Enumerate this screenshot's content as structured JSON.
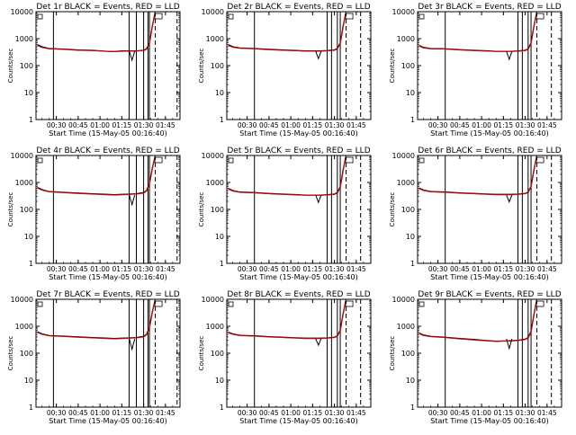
{
  "figure": {
    "xlabel": "Start Time (15-May-05 00:16:40)",
    "ylabel": "Counts/sec",
    "x_ticks": [
      "00:30",
      "00:45",
      "01:00",
      "01:15",
      "01:30",
      "01:45"
    ],
    "y_ticks": [
      "1",
      "10",
      "100",
      "1000",
      "10000"
    ],
    "colors": {
      "events": "#000000",
      "lld": "#d40000",
      "axes": "#000000",
      "background": "#ffffff"
    }
  },
  "chart_data": [
    {
      "type": "line",
      "title": "Det 1r BLACK = Events, RED = LLD",
      "xlabel": "Start Time (15-May-05 00:16:40)",
      "ylabel": "Counts/sec",
      "y_scale": "log",
      "xlim": [
        "00:16",
        "01:55"
      ],
      "ylim": [
        1,
        10000
      ],
      "x": [
        "00:17",
        "00:20",
        "00:25",
        "00:35",
        "00:45",
        "00:55",
        "01:05",
        "01:10",
        "01:15",
        "01:20",
        "01:25",
        "01:30",
        "01:32",
        "01:34",
        "01:36",
        "01:38"
      ],
      "series": [
        {
          "name": "Events",
          "color": "#000000",
          "values": [
            600,
            500,
            430,
            410,
            380,
            370,
            340,
            330,
            350,
            350,
            350,
            370,
            420,
            700,
            3000,
            10000
          ]
        },
        {
          "name": "LLD",
          "color": "#d40000",
          "values": [
            560,
            470,
            420,
            400,
            370,
            360,
            340,
            330,
            340,
            345,
            350,
            360,
            400,
            650,
            2800,
            10000
          ]
        }
      ],
      "vertical_lines_solid": [
        "00:28",
        "01:20",
        "01:25",
        "01:30",
        "01:33",
        "01:34"
      ],
      "vertical_lines_dashed": [
        "01:38",
        "01:53"
      ],
      "dip": {
        "x": "01:22",
        "y": 160
      }
    },
    {
      "type": "line",
      "title": "Det 2r BLACK = Events, RED = LLD",
      "xlabel": "Start Time (15-May-05 00:16:40)",
      "ylabel": "Counts/sec",
      "y_scale": "log",
      "xlim": [
        "00:16",
        "01:55"
      ],
      "ylim": [
        1,
        10000
      ],
      "x": [
        "00:17",
        "00:20",
        "00:25",
        "00:35",
        "00:45",
        "00:55",
        "01:05",
        "01:10",
        "01:15",
        "01:20",
        "01:25",
        "01:30",
        "01:32",
        "01:34",
        "01:36",
        "01:38"
      ],
      "series": [
        {
          "name": "Events",
          "color": "#000000",
          "values": [
            600,
            500,
            450,
            430,
            400,
            380,
            360,
            350,
            350,
            350,
            360,
            380,
            430,
            700,
            3000,
            10000
          ]
        },
        {
          "name": "LLD",
          "color": "#d40000",
          "values": [
            560,
            480,
            440,
            420,
            390,
            370,
            355,
            345,
            345,
            345,
            355,
            370,
            410,
            650,
            2800,
            10000
          ]
        }
      ],
      "vertical_lines_solid": [
        "00:35",
        "01:25",
        "01:28",
        "01:32",
        "01:34"
      ],
      "vertical_lines_dashed": [
        "01:38",
        "01:48"
      ],
      "dip": {
        "x": "01:19",
        "y": 180
      }
    },
    {
      "type": "line",
      "title": "Det 3r BLACK = Events, RED = LLD",
      "xlabel": "Start Time (15-May-05 00:16:40)",
      "ylabel": "Counts/sec",
      "y_scale": "log",
      "xlim": [
        "00:16",
        "01:55"
      ],
      "ylim": [
        1,
        10000
      ],
      "x": [
        "00:17",
        "00:20",
        "00:25",
        "00:35",
        "00:45",
        "00:55",
        "01:05",
        "01:10",
        "01:15",
        "01:20",
        "01:25",
        "01:30",
        "01:32",
        "01:34",
        "01:36",
        "01:38"
      ],
      "series": [
        {
          "name": "Events",
          "color": "#000000",
          "values": [
            560,
            470,
            430,
            420,
            390,
            370,
            350,
            340,
            340,
            340,
            350,
            370,
            420,
            700,
            3000,
            10000
          ]
        },
        {
          "name": "LLD",
          "color": "#d40000",
          "values": [
            530,
            450,
            420,
            410,
            380,
            360,
            345,
            335,
            335,
            335,
            345,
            360,
            400,
            650,
            2800,
            10000
          ]
        }
      ],
      "vertical_lines_solid": [
        "00:35",
        "01:25",
        "01:28",
        "01:32",
        "01:34"
      ],
      "vertical_lines_dashed": [
        "01:38",
        "01:48"
      ],
      "dip": {
        "x": "01:19",
        "y": 170
      }
    },
    {
      "type": "line",
      "title": "Det 4r BLACK = Events, RED = LLD",
      "xlabel": "Start Time (15-May-05 00:16:40)",
      "ylabel": "Counts/sec",
      "y_scale": "log",
      "xlim": [
        "00:16",
        "01:55"
      ],
      "ylim": [
        1,
        10000
      ],
      "x": [
        "00:17",
        "00:20",
        "00:25",
        "00:35",
        "00:45",
        "00:55",
        "01:05",
        "01:10",
        "01:15",
        "01:20",
        "01:25",
        "01:30",
        "01:32",
        "01:34",
        "01:36",
        "01:38"
      ],
      "series": [
        {
          "name": "Events",
          "color": "#000000",
          "values": [
            650,
            540,
            460,
            430,
            400,
            380,
            360,
            350,
            360,
            370,
            380,
            420,
            500,
            900,
            3500,
            10000
          ]
        },
        {
          "name": "LLD",
          "color": "#d40000",
          "values": [
            620,
            520,
            450,
            420,
            390,
            370,
            350,
            340,
            350,
            360,
            370,
            400,
            480,
            850,
            3200,
            10000
          ]
        }
      ],
      "vertical_lines_solid": [
        "00:28",
        "01:20",
        "01:25",
        "01:30",
        "01:33",
        "01:34"
      ],
      "vertical_lines_dashed": [
        "01:38",
        "01:53"
      ],
      "dip": {
        "x": "01:22",
        "y": 150
      }
    },
    {
      "type": "line",
      "title": "Det 5r BLACK = Events, RED = LLD",
      "xlabel": "Start Time (15-May-05 00:16:40)",
      "ylabel": "Counts/sec",
      "y_scale": "log",
      "xlim": [
        "00:16",
        "01:55"
      ],
      "ylim": [
        1,
        10000
      ],
      "x": [
        "00:17",
        "00:20",
        "00:25",
        "00:35",
        "00:45",
        "00:55",
        "01:05",
        "01:10",
        "01:15",
        "01:20",
        "01:25",
        "01:30",
        "01:32",
        "01:34",
        "01:36",
        "01:38"
      ],
      "series": [
        {
          "name": "Events",
          "color": "#000000",
          "values": [
            600,
            500,
            440,
            420,
            390,
            370,
            350,
            340,
            340,
            340,
            350,
            370,
            420,
            700,
            3000,
            10000
          ]
        },
        {
          "name": "LLD",
          "color": "#d40000",
          "values": [
            570,
            480,
            430,
            410,
            380,
            360,
            345,
            335,
            335,
            335,
            345,
            360,
            400,
            650,
            2800,
            10000
          ]
        }
      ],
      "vertical_lines_solid": [
        "00:35",
        "01:25",
        "01:28",
        "01:32",
        "01:34"
      ],
      "vertical_lines_dashed": [
        "01:38",
        "01:48"
      ],
      "dip": {
        "x": "01:19",
        "y": 180
      }
    },
    {
      "type": "line",
      "title": "Det 6r BLACK = Events, RED = LLD",
      "xlabel": "Start Time (15-May-05 00:16:40)",
      "ylabel": "Counts/sec",
      "y_scale": "log",
      "xlim": [
        "00:16",
        "01:55"
      ],
      "ylim": [
        1,
        10000
      ],
      "x": [
        "00:17",
        "00:20",
        "00:25",
        "00:35",
        "00:45",
        "00:55",
        "01:05",
        "01:10",
        "01:15",
        "01:20",
        "01:25",
        "01:30",
        "01:32",
        "01:34",
        "01:36",
        "01:38"
      ],
      "series": [
        {
          "name": "Events",
          "color": "#000000",
          "values": [
            620,
            520,
            460,
            440,
            410,
            390,
            370,
            360,
            360,
            360,
            370,
            390,
            440,
            720,
            3000,
            10000
          ]
        },
        {
          "name": "LLD",
          "color": "#d40000",
          "values": [
            590,
            500,
            450,
            430,
            400,
            380,
            360,
            350,
            350,
            350,
            360,
            380,
            420,
            680,
            2800,
            10000
          ]
        }
      ],
      "vertical_lines_solid": [
        "00:35",
        "01:25",
        "01:28",
        "01:32",
        "01:34"
      ],
      "vertical_lines_dashed": [
        "01:38",
        "01:48"
      ],
      "dip": {
        "x": "01:19",
        "y": 190
      }
    },
    {
      "type": "line",
      "title": "Det 7r BLACK = Events, RED = LLD",
      "xlabel": "Start Time (15-May-05 00:16:40)",
      "ylabel": "Counts/sec",
      "y_scale": "log",
      "xlim": [
        "00:16",
        "01:55"
      ],
      "ylim": [
        1,
        10000
      ],
      "x": [
        "00:17",
        "00:20",
        "00:25",
        "00:35",
        "00:45",
        "00:55",
        "01:05",
        "01:10",
        "01:15",
        "01:20",
        "01:25",
        "01:30",
        "01:32",
        "01:34",
        "01:36",
        "01:38"
      ],
      "series": [
        {
          "name": "Events",
          "color": "#000000",
          "values": [
            620,
            520,
            450,
            430,
            400,
            380,
            360,
            350,
            360,
            370,
            380,
            420,
            500,
            900,
            3500,
            10000
          ]
        },
        {
          "name": "LLD",
          "color": "#d40000",
          "values": [
            590,
            500,
            440,
            420,
            390,
            370,
            350,
            340,
            350,
            360,
            370,
            400,
            480,
            850,
            3200,
            10000
          ]
        }
      ],
      "vertical_lines_solid": [
        "00:28",
        "01:20",
        "01:25",
        "01:30",
        "01:33",
        "01:34"
      ],
      "vertical_lines_dashed": [
        "01:38",
        "01:53"
      ],
      "dip": {
        "x": "01:22",
        "y": 140
      }
    },
    {
      "type": "line",
      "title": "Det 8r BLACK = Events, RED = LLD",
      "xlabel": "Start Time (15-May-05 00:16:40)",
      "ylabel": "Counts/sec",
      "y_scale": "log",
      "xlim": [
        "00:16",
        "01:55"
      ],
      "ylim": [
        1,
        10000
      ],
      "x": [
        "00:17",
        "00:20",
        "00:25",
        "00:35",
        "00:45",
        "00:55",
        "01:05",
        "01:10",
        "01:15",
        "01:20",
        "01:25",
        "01:30",
        "01:32",
        "01:34",
        "01:36",
        "01:38"
      ],
      "series": [
        {
          "name": "Events",
          "color": "#000000",
          "values": [
            600,
            520,
            460,
            440,
            410,
            390,
            370,
            360,
            360,
            360,
            370,
            390,
            440,
            720,
            3000,
            10000
          ]
        },
        {
          "name": "LLD",
          "color": "#d40000",
          "values": [
            570,
            500,
            450,
            430,
            400,
            380,
            360,
            350,
            350,
            350,
            360,
            380,
            420,
            680,
            2800,
            10000
          ]
        }
      ],
      "vertical_lines_solid": [
        "00:35",
        "01:25",
        "01:28",
        "01:32",
        "01:34"
      ],
      "vertical_lines_dashed": [
        "01:38",
        "01:48"
      ],
      "dip": {
        "x": "01:19",
        "y": 200
      }
    },
    {
      "type": "line",
      "title": "Det 9r BLACK = Events, RED = LLD",
      "xlabel": "Start Time (15-May-05 00:16:40)",
      "ylabel": "Counts/sec",
      "y_scale": "log",
      "xlim": [
        "00:16",
        "01:55"
      ],
      "ylim": [
        1,
        10000
      ],
      "x": [
        "00:17",
        "00:20",
        "00:25",
        "00:35",
        "00:45",
        "00:55",
        "01:05",
        "01:10",
        "01:15",
        "01:20",
        "01:25",
        "01:30",
        "01:32",
        "01:34",
        "01:36",
        "01:38"
      ],
      "series": [
        {
          "name": "Events",
          "color": "#000000",
          "values": [
            560,
            470,
            420,
            390,
            350,
            320,
            290,
            280,
            285,
            290,
            300,
            330,
            380,
            650,
            2800,
            10000
          ]
        },
        {
          "name": "LLD",
          "color": "#d40000",
          "values": [
            530,
            450,
            410,
            380,
            340,
            310,
            285,
            275,
            280,
            285,
            295,
            320,
            360,
            600,
            2600,
            10000
          ]
        }
      ],
      "vertical_lines_solid": [
        "00:35",
        "01:25",
        "01:28",
        "01:32",
        "01:34"
      ],
      "vertical_lines_dashed": [
        "01:38",
        "01:48"
      ],
      "dip": {
        "x": "01:19",
        "y": 150
      }
    }
  ]
}
